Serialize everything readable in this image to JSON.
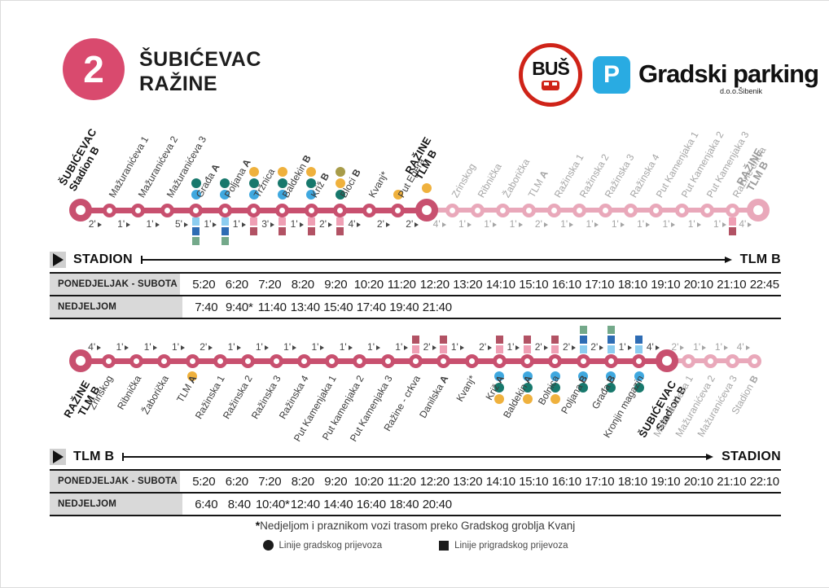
{
  "header": {
    "route_number": "2",
    "route_name_line1": "ŠUBIĆEVAC",
    "route_name_line2": "RAŽINE",
    "bus_logo_text": "BUŠ",
    "parking_logo_letter": "P",
    "parking_logo_text": "Gradski parking",
    "parking_logo_sub": "d.o.o.Šibenik"
  },
  "colors": {
    "brand": "#d94a6e",
    "line_dark": "#c8506f",
    "line_light": "#e9a8ba",
    "parking_blue": "#29abe2",
    "bus_red": "#cf2318",
    "dot": {
      "teal": "#17786c",
      "blue": "#3fa8df",
      "yellow": "#efb13d",
      "olive": "#a89c49"
    },
    "square": {
      "lightblue": "#8ccdf0",
      "blue": "#2e6cb4",
      "green": "#74a98a",
      "pink": "#ef9fb4",
      "darkpink": "#b25264"
    }
  },
  "routes": [
    {
      "id": "stadion-to-tlmb",
      "dark_count": 13,
      "times": [
        2,
        1,
        1,
        5,
        1,
        1,
        3,
        1,
        2,
        4,
        2,
        2,
        4,
        1,
        1,
        1,
        2,
        1,
        1,
        1,
        1,
        1,
        1,
        1,
        4
      ],
      "stations": [
        {
          "name": "ŠUBIĆEVAC",
          "sub": "Stadion",
          "sub_suffix": "B",
          "terminal": true,
          "big": true
        },
        {
          "name": "Mažuranićeva 1"
        },
        {
          "name": "Mažuranićeva 2"
        },
        {
          "name": "Mažuranićeva 3"
        },
        {
          "name": "Građa",
          "suffix": "A",
          "dots": [
            "teal",
            "blue"
          ],
          "squares": [
            "lightblue",
            "blue",
            "green"
          ]
        },
        {
          "name": "Poljana",
          "suffix": "A",
          "dots": [
            "teal",
            "blue"
          ],
          "squares": [
            "lightblue",
            "blue",
            "green"
          ]
        },
        {
          "name": "Tržnica",
          "dots": [
            "yellow",
            "teal",
            "blue"
          ],
          "squares": [
            "pink",
            "darkpink"
          ]
        },
        {
          "name": "Baldekin",
          "suffix": "B",
          "dots": [
            "yellow",
            "teal",
            "blue"
          ],
          "squares": [
            "pink",
            "darkpink"
          ]
        },
        {
          "name": "Križ",
          "suffix": "B",
          "dots": [
            "yellow",
            "teal",
            "blue"
          ],
          "squares": [
            "pink",
            "darkpink"
          ]
        },
        {
          "name": "Bloci",
          "suffix": "B",
          "dots": [
            "olive",
            "yellow",
            "teal"
          ],
          "squares": [
            "pink",
            "darkpink"
          ]
        },
        {
          "name": "Kvanj*"
        },
        {
          "name": "Put Egera",
          "dots": [
            "yellow"
          ]
        },
        {
          "name": "RAŽINE",
          "sub": "TLM",
          "sub_suffix": "B",
          "terminal": true,
          "big": true,
          "dots": [
            "yellow"
          ]
        },
        {
          "name": "Zrinskog"
        },
        {
          "name": "Ribnička"
        },
        {
          "name": "Žaborička"
        },
        {
          "name": "TLM",
          "suffix": "A"
        },
        {
          "name": "Ražinska 1"
        },
        {
          "name": "Ražinska 2"
        },
        {
          "name": "Ražinska 3"
        },
        {
          "name": "Ražinska 4"
        },
        {
          "name": "Put Kamenjaka 1"
        },
        {
          "name": "Put Kamenjaka 2"
        },
        {
          "name": "Put Kamenjaka 3"
        },
        {
          "name": "Ražine crkva",
          "squares": [
            "pink",
            "darkpink"
          ]
        },
        {
          "name": "RAŽINE",
          "sub": "TLM",
          "sub_suffix": "B",
          "terminal": true,
          "big": true
        }
      ]
    },
    {
      "id": "tlmb-to-stadion",
      "dark_count": 22,
      "times": [
        4,
        1,
        1,
        1,
        2,
        1,
        1,
        1,
        1,
        1,
        1,
        1,
        2,
        1,
        2,
        1,
        2,
        2,
        2,
        1,
        4,
        2,
        1,
        1,
        4
      ],
      "stations": [
        {
          "name": "RAŽINE",
          "sub": "TLM",
          "sub_suffix": "B",
          "terminal": true,
          "big": true
        },
        {
          "name": "Zrinskog"
        },
        {
          "name": "Ribnička"
        },
        {
          "name": "Žaborička"
        },
        {
          "name": "TLM",
          "suffix": "A",
          "dots": [
            "yellow"
          ]
        },
        {
          "name": "Ražinska 1"
        },
        {
          "name": "Ražinska 2"
        },
        {
          "name": "Ražinska 3"
        },
        {
          "name": "Ražinska 4"
        },
        {
          "name": "Put Kamenjaka 1"
        },
        {
          "name": "Put kamenjaka 2"
        },
        {
          "name": "Put Kamenjaka 3"
        },
        {
          "name": "Ražine - crkva",
          "squares": [
            "darkpink",
            "pink"
          ]
        },
        {
          "name": "Danilska",
          "suffix": "A",
          "squares": [
            "darkpink",
            "pink"
          ]
        },
        {
          "name": "Kvanj*"
        },
        {
          "name": "Križ",
          "suffix": "A",
          "squares": [
            "darkpink",
            "pink"
          ],
          "dots": [
            "blue",
            "teal",
            "yellow"
          ]
        },
        {
          "name": "Baldekin",
          "suffix": "A",
          "squares": [
            "darkpink",
            "pink"
          ],
          "dots": [
            "blue",
            "teal",
            "yellow"
          ]
        },
        {
          "name": "Bolnica",
          "squares": [
            "darkpink",
            "pink"
          ],
          "dots": [
            "blue",
            "teal",
            "yellow"
          ]
        },
        {
          "name": "Poljana",
          "suffix": "B",
          "squares": [
            "green",
            "blue",
            "lightblue"
          ],
          "dots": [
            "blue",
            "teal"
          ]
        },
        {
          "name": "Građa",
          "suffix": "B",
          "squares": [
            "green",
            "blue",
            "lightblue"
          ],
          "dots": [
            "blue",
            "teal"
          ]
        },
        {
          "name": "Kronjin magazin",
          "squares": [
            "blue",
            "lightblue"
          ],
          "dots": [
            "blue",
            "teal"
          ]
        },
        {
          "name": "ŠUBIĆEVAC",
          "sub": "Stadion",
          "sub_suffix": "B",
          "terminal": true,
          "big": true
        },
        {
          "name": "Mažuranićeva 1"
        },
        {
          "name": "Mažuranićeva 2"
        },
        {
          "name": "Mažuranićeva 3"
        },
        {
          "name": "Stadion",
          "suffix": "B"
        }
      ]
    }
  ],
  "timetables": [
    {
      "from": "STADION",
      "to": "TLM B",
      "rows": [
        {
          "label": "PONEDJELJAK - SUBOTA",
          "times": [
            "5:20",
            "6:20",
            "7:20",
            "8:20",
            "9:20",
            "10:20",
            "11:20",
            "12:20",
            "13:20",
            "14:10",
            "15:10",
            "16:10",
            "17:10",
            "18:10",
            "19:10",
            "20:10",
            "21:10",
            "22:45"
          ]
        },
        {
          "label": "NEDJELJOM",
          "times": [
            "7:40",
            "9:40*",
            "11:40",
            "13:40",
            "15:40",
            "17:40",
            "19:40",
            "21:40"
          ]
        }
      ]
    },
    {
      "from": "TLM B",
      "to": "STADION",
      "rows": [
        {
          "label": "PONEDJELJAK - SUBOTA",
          "times": [
            "5:20",
            "6:20",
            "7:20",
            "8:20",
            "9:20",
            "10:20",
            "11:20",
            "12:20",
            "13:20",
            "14:10",
            "15:10",
            "16:10",
            "17:10",
            "18:10",
            "19:10",
            "20:10",
            "21:10",
            "22:10"
          ]
        },
        {
          "label": "NEDJELJOM",
          "times": [
            "6:40",
            "8:40",
            "10:40*",
            "12:40",
            "14:40",
            "16:40",
            "18:40",
            "20:40"
          ]
        }
      ]
    }
  ],
  "footnote_star": "*",
  "footnote_text": "Nedjeljom i praznikom vozi trasom preko Gradskog groblja Kvanj",
  "legend": {
    "dot_label": "Linije gradskog prijevoza",
    "square_label": "Linije prigradskog prijevoza"
  }
}
